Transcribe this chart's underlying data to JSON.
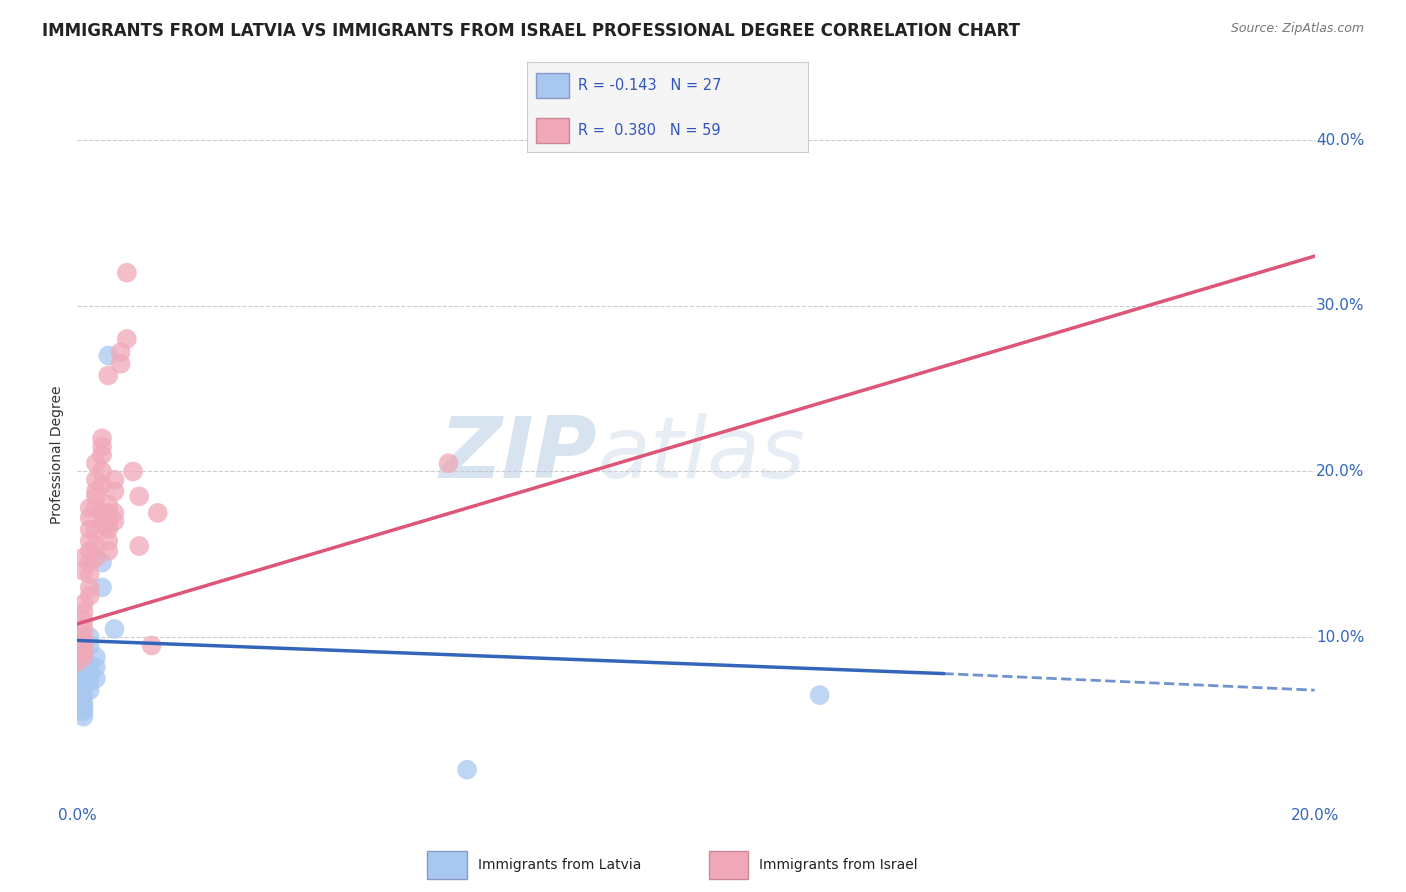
{
  "title": "IMMIGRANTS FROM LATVIA VS IMMIGRANTS FROM ISRAEL PROFESSIONAL DEGREE CORRELATION CHART",
  "source": "Source: ZipAtlas.com",
  "ylabel_label": "Professional Degree",
  "latvia_color": "#a8c8f0",
  "israel_color": "#f0a8b8",
  "latvia_line_color": "#3366bb",
  "israel_line_color": "#dd5577",
  "background_color": "#ffffff",
  "watermark_zip": "ZIP",
  "watermark_atlas": "atlas",
  "xlim": [
    0.0,
    0.2
  ],
  "ylim": [
    0.0,
    0.42
  ],
  "latvia_scatter": [
    [
      0.0,
      0.075
    ],
    [
      0.0,
      0.068
    ],
    [
      0.001,
      0.07
    ],
    [
      0.001,
      0.065
    ],
    [
      0.001,
      0.06
    ],
    [
      0.001,
      0.058
    ],
    [
      0.001,
      0.055
    ],
    [
      0.001,
      0.052
    ],
    [
      0.001,
      0.08
    ],
    [
      0.001,
      0.085
    ],
    [
      0.001,
      0.072
    ],
    [
      0.001,
      0.09
    ],
    [
      0.002,
      0.078
    ],
    [
      0.002,
      0.083
    ],
    [
      0.002,
      0.068
    ],
    [
      0.002,
      0.095
    ],
    [
      0.002,
      0.1
    ],
    [
      0.002,
      0.073
    ],
    [
      0.003,
      0.088
    ],
    [
      0.003,
      0.082
    ],
    [
      0.003,
      0.075
    ],
    [
      0.004,
      0.145
    ],
    [
      0.004,
      0.13
    ],
    [
      0.005,
      0.27
    ],
    [
      0.006,
      0.105
    ],
    [
      0.12,
      0.065
    ],
    [
      0.063,
      0.02
    ]
  ],
  "israel_scatter": [
    [
      0.0,
      0.1
    ],
    [
      0.0,
      0.095
    ],
    [
      0.0,
      0.09
    ],
    [
      0.0,
      0.085
    ],
    [
      0.001,
      0.105
    ],
    [
      0.001,
      0.1
    ],
    [
      0.001,
      0.092
    ],
    [
      0.001,
      0.088
    ],
    [
      0.001,
      0.12
    ],
    [
      0.001,
      0.115
    ],
    [
      0.001,
      0.11
    ],
    [
      0.001,
      0.095
    ],
    [
      0.001,
      0.148
    ],
    [
      0.001,
      0.14
    ],
    [
      0.002,
      0.13
    ],
    [
      0.002,
      0.125
    ],
    [
      0.002,
      0.165
    ],
    [
      0.002,
      0.158
    ],
    [
      0.002,
      0.152
    ],
    [
      0.002,
      0.145
    ],
    [
      0.002,
      0.138
    ],
    [
      0.002,
      0.178
    ],
    [
      0.002,
      0.172
    ],
    [
      0.003,
      0.185
    ],
    [
      0.003,
      0.178
    ],
    [
      0.003,
      0.165
    ],
    [
      0.003,
      0.195
    ],
    [
      0.003,
      0.188
    ],
    [
      0.003,
      0.205
    ],
    [
      0.003,
      0.155
    ],
    [
      0.003,
      0.148
    ],
    [
      0.004,
      0.2
    ],
    [
      0.004,
      0.192
    ],
    [
      0.004,
      0.21
    ],
    [
      0.004,
      0.175
    ],
    [
      0.004,
      0.168
    ],
    [
      0.004,
      0.22
    ],
    [
      0.004,
      0.215
    ],
    [
      0.005,
      0.165
    ],
    [
      0.005,
      0.158
    ],
    [
      0.005,
      0.152
    ],
    [
      0.005,
      0.18
    ],
    [
      0.005,
      0.175
    ],
    [
      0.005,
      0.168
    ],
    [
      0.006,
      0.17
    ],
    [
      0.006,
      0.195
    ],
    [
      0.006,
      0.188
    ],
    [
      0.006,
      0.175
    ],
    [
      0.007,
      0.272
    ],
    [
      0.007,
      0.265
    ],
    [
      0.008,
      0.28
    ],
    [
      0.008,
      0.32
    ],
    [
      0.009,
      0.2
    ],
    [
      0.01,
      0.185
    ],
    [
      0.012,
      0.095
    ],
    [
      0.013,
      0.175
    ],
    [
      0.06,
      0.205
    ],
    [
      0.01,
      0.155
    ],
    [
      0.005,
      0.258
    ]
  ],
  "latvia_line": {
    "x0": 0.0,
    "y0": 0.098,
    "x1": 0.14,
    "y1": 0.078
  },
  "latvia_dash_line": {
    "x0": 0.14,
    "y0": 0.078,
    "x1": 0.2,
    "y1": 0.068
  },
  "israel_line": {
    "x0": 0.0,
    "y0": 0.108,
    "x1": 0.2,
    "y1": 0.33
  },
  "title_fontsize": 12,
  "axis_fontsize": 10,
  "tick_fontsize": 11,
  "legend_r1_R": "-0.143",
  "legend_r1_N": "27",
  "legend_r2_R": "0.380",
  "legend_r2_N": "59"
}
